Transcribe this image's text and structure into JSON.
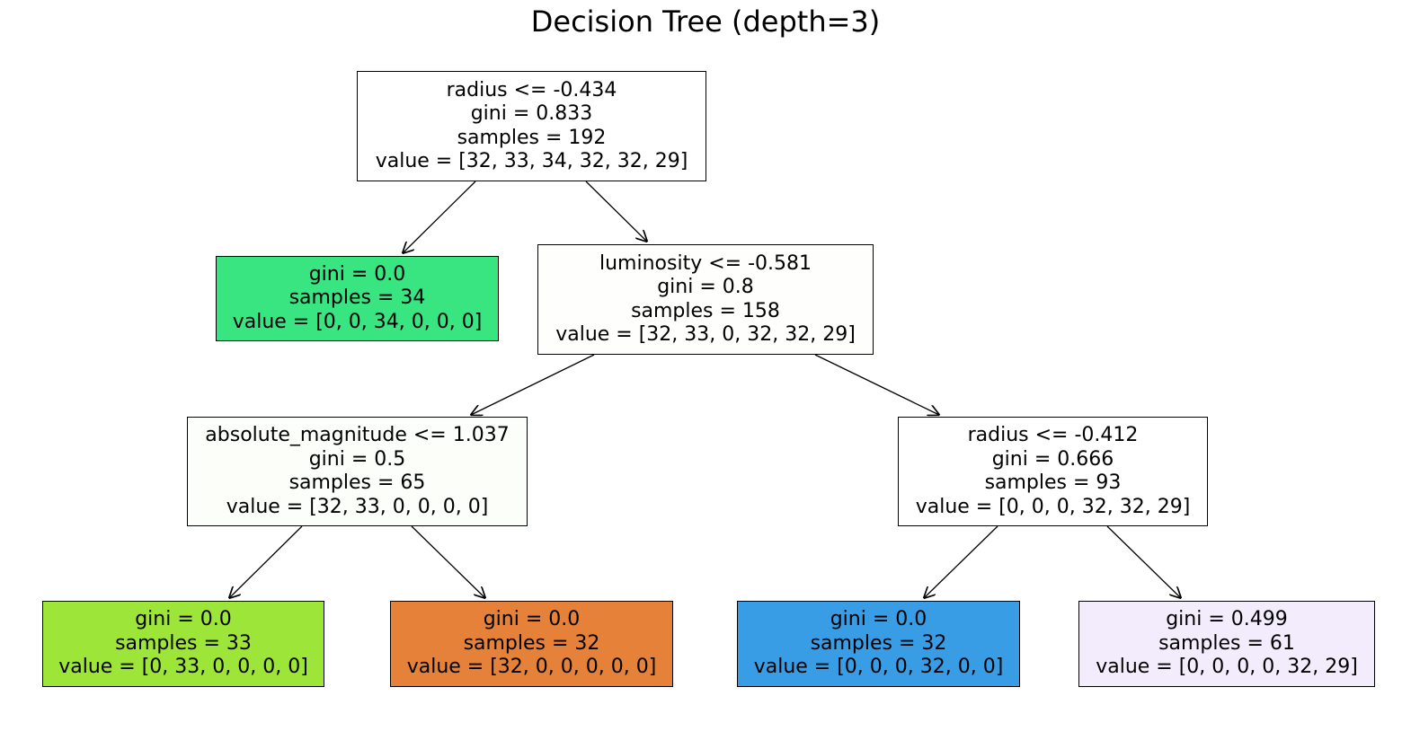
{
  "title": "Decision Tree (depth=3)",
  "nodes": [
    {
      "id": "n0",
      "split": "radius <= -0.434",
      "gini": "gini = 0.833",
      "samples": "samples = 192",
      "value": "value = [32, 33, 34, 32, 32, 29]",
      "fill": "#ffffff"
    },
    {
      "id": "n1",
      "split": "",
      "gini": "gini = 0.0",
      "samples": "samples = 34",
      "value": "value = [0, 0, 34, 0, 0, 0]",
      "fill": "#39e581"
    },
    {
      "id": "n2",
      "split": "luminosity <= -0.581",
      "gini": "gini = 0.8",
      "samples": "samples = 158",
      "value": "value = [32, 33, 0, 32, 32, 29]",
      "fill": "#fefffd"
    },
    {
      "id": "n3",
      "split": "absolute_magnitude <= 1.037",
      "gini": "gini = 0.5",
      "samples": "samples = 65",
      "value": "value = [32, 33, 0, 0, 0, 0]",
      "fill": "#fcfefa"
    },
    {
      "id": "n4",
      "split": "",
      "gini": "gini = 0.0",
      "samples": "samples = 33",
      "value": "value = [0, 33, 0, 0, 0, 0]",
      "fill": "#9de539"
    },
    {
      "id": "n5",
      "split": "",
      "gini": "gini = 0.0",
      "samples": "samples = 32",
      "value": "value = [32, 0, 0, 0, 0, 0]",
      "fill": "#e58139"
    },
    {
      "id": "n6",
      "split": "radius <= -0.412",
      "gini": "gini = 0.666",
      "samples": "samples = 93",
      "value": "value = [0, 0, 0, 32, 32, 29]",
      "fill": "#ffffff"
    },
    {
      "id": "n7",
      "split": "",
      "gini": "gini = 0.0",
      "samples": "samples = 32",
      "value": "value = [0, 0, 0, 32, 0, 0]",
      "fill": "#399de5"
    },
    {
      "id": "n8",
      "split": "",
      "gini": "gini = 0.499",
      "samples": "samples = 61",
      "value": "value = [0, 0, 0, 0, 32, 29]",
      "fill": "#f2ecfd"
    }
  ],
  "edges": [
    {
      "from": "n0",
      "to": "n1"
    },
    {
      "from": "n0",
      "to": "n2"
    },
    {
      "from": "n2",
      "to": "n3"
    },
    {
      "from": "n2",
      "to": "n6"
    },
    {
      "from": "n3",
      "to": "n4"
    },
    {
      "from": "n3",
      "to": "n5"
    },
    {
      "from": "n6",
      "to": "n7"
    },
    {
      "from": "n6",
      "to": "n8"
    }
  ]
}
